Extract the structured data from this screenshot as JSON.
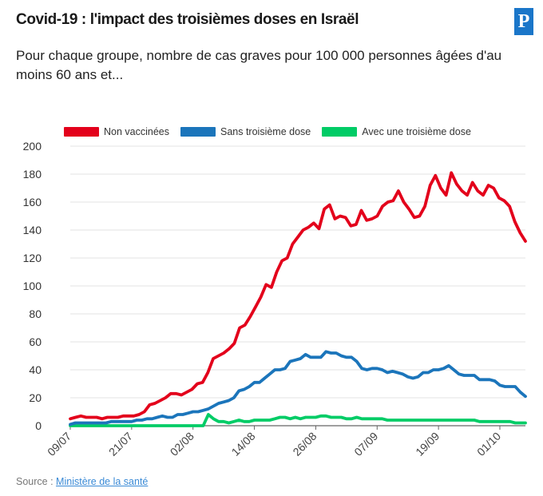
{
  "header": {
    "title": "Covid-19 : l'impact des troisièmes doses en Israël",
    "subtitle": "Pour chaque groupe, nombre de cas graves pour 100 000 personnes âgées d'au moins 60 ans et...",
    "logo_text": "P"
  },
  "source": {
    "label": "Source :",
    "link_text": "Ministère de la santé"
  },
  "chart_data": {
    "type": "line",
    "title": "",
    "xlabel": "",
    "ylabel": "",
    "ylim": [
      0,
      200
    ],
    "yticks": [
      0,
      20,
      40,
      60,
      80,
      100,
      120,
      140,
      160,
      180,
      200
    ],
    "x_range": [
      "2021-07-09",
      "2021-10-06"
    ],
    "xtick_labels": [
      "09/07",
      "21/07",
      "02/08",
      "14/08",
      "26/08",
      "07/09",
      "19/09",
      "01/10"
    ],
    "grid": "horizontal",
    "legend_position": "top-left",
    "series": [
      {
        "name": "Non vaccinées",
        "color": "#e3001b",
        "values": [
          5,
          6,
          7,
          6,
          6,
          6,
          5,
          6,
          6,
          6,
          7,
          7,
          7,
          8,
          10,
          15,
          16,
          18,
          20,
          23,
          23,
          22,
          24,
          26,
          30,
          31,
          38,
          48,
          50,
          52,
          55,
          59,
          70,
          72,
          78,
          85,
          92,
          101,
          99,
          110,
          118,
          120,
          130,
          135,
          140,
          142,
          145,
          141,
          155,
          158,
          148,
          150,
          149,
          143,
          144,
          154,
          147,
          148,
          150,
          157,
          160,
          161,
          168,
          160,
          155,
          149,
          150,
          157,
          172,
          179,
          170,
          165,
          181,
          173,
          168,
          165,
          174,
          168,
          165,
          172,
          170,
          163,
          161,
          157,
          146,
          138,
          132
        ],
        "color_name": "red"
      },
      {
        "name": "Sans troisième dose",
        "color": "#1b75bb",
        "values": [
          1,
          2,
          2,
          2,
          2,
          2,
          2,
          2,
          3,
          3,
          3,
          3,
          3,
          4,
          4,
          5,
          5,
          6,
          7,
          6,
          6,
          8,
          8,
          9,
          10,
          10,
          11,
          12,
          14,
          16,
          17,
          18,
          20,
          25,
          26,
          28,
          31,
          31,
          34,
          37,
          40,
          40,
          41,
          46,
          47,
          48,
          51,
          49,
          49,
          49,
          53,
          52,
          52,
          50,
          49,
          49,
          46,
          41,
          40,
          41,
          41,
          40,
          38,
          39,
          38,
          37,
          35,
          34,
          35,
          38,
          38,
          40,
          40,
          41,
          43,
          40,
          37,
          36,
          36,
          36,
          33,
          33,
          33,
          32,
          29,
          28,
          28,
          28,
          24,
          21
        ],
        "color_name": "blue"
      },
      {
        "name": "Avec une troisième dose",
        "color": "#00cc66",
        "values": [
          0,
          0,
          0,
          0,
          0,
          0,
          0,
          0,
          0,
          0,
          0,
          0,
          0,
          0,
          0,
          0,
          0,
          0,
          0,
          0,
          0,
          0,
          0,
          0,
          0,
          0,
          0,
          8,
          5,
          3,
          3,
          2,
          3,
          4,
          3,
          3,
          4,
          4,
          4,
          4,
          5,
          6,
          6,
          5,
          6,
          5,
          6,
          6,
          6,
          7,
          7,
          6,
          6,
          6,
          5,
          5,
          6,
          5,
          5,
          5,
          5,
          5,
          4,
          4,
          4,
          4,
          4,
          4,
          4,
          4,
          4,
          4,
          4,
          4,
          4,
          4,
          4,
          4,
          4,
          4,
          3,
          3,
          3,
          3,
          3,
          3,
          3,
          2,
          2,
          2
        ],
        "color_name": "green"
      }
    ]
  }
}
